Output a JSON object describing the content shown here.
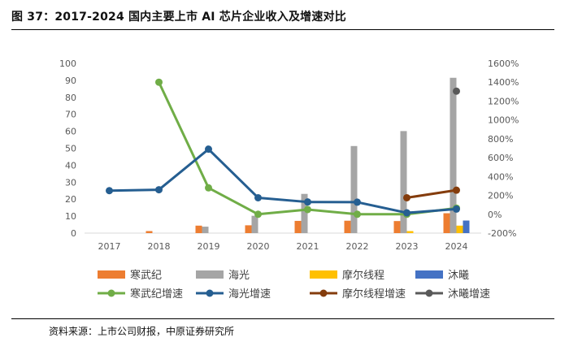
{
  "figure": {
    "title": "图 37：2017-2024 国内主要上市 AI 芯片企业收入及增速对比",
    "source": "资料来源：上市公司财报，中原证券研究所"
  },
  "chart_data": {
    "type": "bar",
    "categories": [
      "2017",
      "2018",
      "2019",
      "2020",
      "2021",
      "2022",
      "2023",
      "2024"
    ],
    "left_axis": {
      "range": [
        0,
        100
      ],
      "ticks": [
        "0",
        "10",
        "20",
        "30",
        "40",
        "50",
        "60",
        "70",
        "80",
        "90",
        "100"
      ]
    },
    "right_axis": {
      "range": [
        -200,
        1600
      ],
      "ticks": [
        "-200%",
        "0%",
        "200%",
        "400%",
        "600%",
        "800%",
        "1000%",
        "1200%",
        "1400%",
        "1600%"
      ]
    },
    "bar_series": [
      {
        "name": "寒武纪",
        "color": "#ED7D31",
        "values": [
          null,
          1.2,
          4.4,
          4.6,
          7.2,
          7.3,
          7.1,
          11.7
        ]
      },
      {
        "name": "海光",
        "color": "#A5A5A5",
        "values": [
          null,
          null,
          3.8,
          10.2,
          23.1,
          51.3,
          60.1,
          91.5
        ]
      },
      {
        "name": "摩尔线程",
        "color": "#FFC000",
        "values": [
          null,
          null,
          null,
          null,
          null,
          null,
          1.2,
          4.4
        ]
      },
      {
        "name": "沐曦",
        "color": "#4472C4",
        "values": [
          null,
          null,
          null,
          null,
          null,
          null,
          null,
          7.4
        ]
      }
    ],
    "line_series": [
      {
        "name": "寒武纪增速",
        "color": "#70AD47",
        "values": [
          null,
          1400,
          280,
          0,
          50,
          0,
          0,
          65
        ]
      },
      {
        "name": "海光增速",
        "color": "#255E91",
        "values": [
          250,
          260,
          690,
          175,
          130,
          128,
          15,
          55
        ]
      },
      {
        "name": "摩尔线程增速",
        "color": "#843C0C",
        "values": [
          null,
          null,
          null,
          null,
          null,
          null,
          175,
          255
        ]
      },
      {
        "name": "沐曦增速",
        "color": "#595959",
        "values": [
          null,
          null,
          null,
          null,
          null,
          null,
          null,
          1305
        ]
      }
    ]
  }
}
